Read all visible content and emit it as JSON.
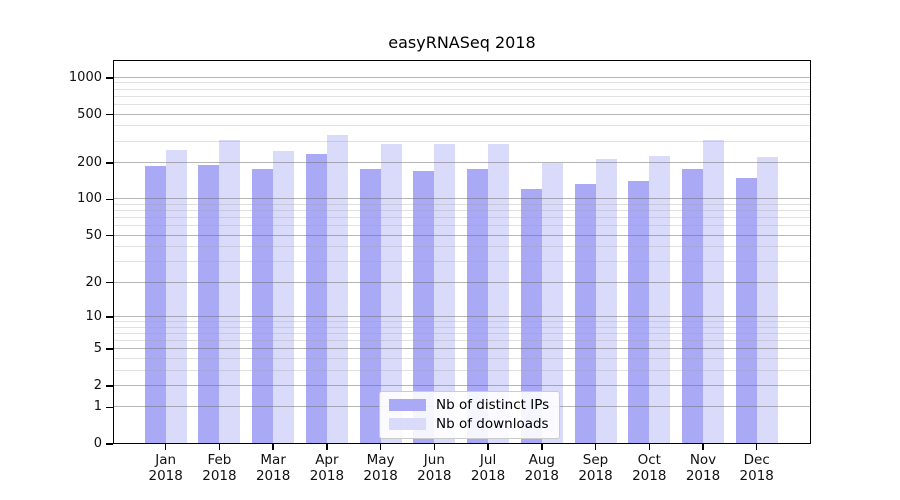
{
  "chart_data": {
    "type": "bar",
    "title": "easyRNASeq 2018",
    "categories": [
      "Jan",
      "Feb",
      "Mar",
      "Apr",
      "May",
      "Jun",
      "Jul",
      "Aug",
      "Sep",
      "Oct",
      "Nov",
      "Dec"
    ],
    "category_year_label": "2018",
    "series": [
      {
        "name": "Nb of distinct IPs",
        "color": "#a9a9f6",
        "values": [
          190,
          191,
          180,
          235,
          178,
          173,
          179,
          122,
          135,
          141,
          178,
          150
        ]
      },
      {
        "name": "Nb of downloads",
        "color": "#dadafb",
        "values": [
          258,
          309,
          250,
          339,
          288,
          288,
          286,
          200,
          215,
          230,
          311,
          226
        ]
      }
    ],
    "yscale": "log1p",
    "ylim": [
      0,
      1400
    ],
    "yticks": [
      0,
      1,
      2,
      5,
      10,
      20,
      50,
      100,
      200,
      500,
      1000
    ],
    "yticks_minor": [
      3,
      4,
      6,
      7,
      8,
      9,
      30,
      40,
      60,
      70,
      80,
      90,
      300,
      400,
      600,
      700,
      800,
      900
    ],
    "grid": "horizontal-major-and-minor",
    "legend_position": "bottom-center",
    "colors": {
      "grid_major": "#b5b5b5",
      "grid_minor": "#e0e0e0",
      "axis": "#000000",
      "background": "#ffffff"
    }
  }
}
